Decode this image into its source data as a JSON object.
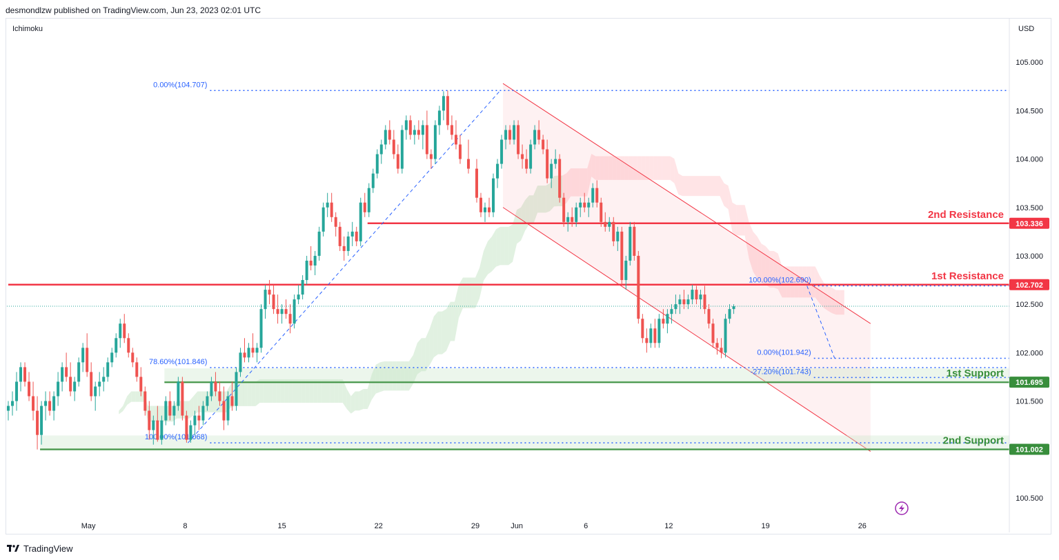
{
  "header": {
    "text": "desmondlzw published on TradingView.com, Jun 23, 2023 02:01 UTC"
  },
  "indicator": "Ichimoku",
  "currency": "USD",
  "footer": {
    "brand": "TradingView"
  },
  "colors": {
    "up": "#26a69a",
    "down": "#ef5350",
    "resistance": "#f23645",
    "support": "#388e3c",
    "fib": "#2962ff",
    "fib_text": "#2962ff",
    "channel": "#f23645",
    "cloud_bull": "#c8e6c9",
    "cloud_bear": "#ffcdd2",
    "flash": "#9c27b0"
  },
  "chart_data": {
    "type": "candlestick",
    "y_range": [
      100.3,
      105.45
    ],
    "y_ticks": [
      "100.500",
      "101.000",
      "101.500",
      "102.000",
      "102.500",
      "103.000",
      "103.500",
      "104.000",
      "104.500",
      "105.000"
    ],
    "x_ticks": [
      {
        "label": "May",
        "day": 1
      },
      {
        "label": "8",
        "day": 8
      },
      {
        "label": "15",
        "day": 15
      },
      {
        "label": "22",
        "day": 22
      },
      {
        "label": "29",
        "day": 29
      },
      {
        "label": "Jun",
        "day": 32
      },
      {
        "label": "6",
        "day": 37
      },
      {
        "label": "12",
        "day": 43
      },
      {
        "label": "19",
        "day": 50
      },
      {
        "label": "26",
        "day": 57
      }
    ],
    "x_range_days": [
      -4.8,
      63.3
    ],
    "last_price": 102.48,
    "levels": [
      {
        "label": "2nd Resistance",
        "value": 103.336,
        "tag": "103.336",
        "kind": "resistance",
        "start_day": 21.2
      },
      {
        "label": "1st Resistance",
        "value": 102.702,
        "tag": "102.702",
        "kind": "resistance",
        "start_day": -4.8
      },
      {
        "label": "1st Support",
        "value": 101.695,
        "tag": "101.695",
        "kind": "support",
        "start_day": 6.5
      },
      {
        "label": "2nd Support",
        "value": 101.002,
        "tag": "101.002",
        "kind": "support",
        "start_day": -2.5
      }
    ],
    "fib_up": {
      "start": {
        "day": 8.2,
        "value": 101.068
      },
      "end": {
        "day": 30.8,
        "value": 104.707
      },
      "levels": [
        {
          "label": "0.00%(104.707)",
          "value": 104.707
        },
        {
          "label": "78.60%(101.846)",
          "value": 101.846
        },
        {
          "label": "100.00%(101.068)",
          "value": 101.068
        }
      ]
    },
    "fib_down": {
      "start": {
        "day": 53.0,
        "value": 102.69
      },
      "end": {
        "day": 55.0,
        "value": 101.942
      },
      "levels": [
        {
          "label": "100.00%(102.690)",
          "value": 102.69
        },
        {
          "label": "0.00%(101.942)",
          "value": 101.942
        },
        {
          "label": "-27.20%(101.743)",
          "value": 101.743
        }
      ]
    },
    "channel": {
      "upper": [
        {
          "day": 31.0,
          "value": 104.78
        },
        {
          "day": 57.6,
          "value": 102.3
        }
      ],
      "lower": [
        {
          "day": 31.0,
          "value": 103.5
        },
        {
          "day": 57.6,
          "value": 100.98
        }
      ]
    },
    "candles": [
      [
        -4.8,
        101.4,
        101.5,
        101.3,
        101.45
      ],
      [
        -4.5,
        101.45,
        101.6,
        101.35,
        101.5
      ],
      [
        -4.2,
        101.5,
        101.8,
        101.4,
        101.7
      ],
      [
        -3.9,
        101.7,
        101.9,
        101.6,
        101.85
      ],
      [
        -3.6,
        101.85,
        101.9,
        101.65,
        101.7
      ],
      [
        -3.3,
        101.7,
        101.8,
        101.5,
        101.55
      ],
      [
        -3.0,
        101.55,
        101.7,
        101.3,
        101.4
      ],
      [
        -2.7,
        101.4,
        101.55,
        101.0,
        101.15
      ],
      [
        -2.4,
        101.15,
        101.5,
        101.05,
        101.45
      ],
      [
        -2.1,
        101.45,
        101.6,
        101.3,
        101.5
      ],
      [
        -1.8,
        101.5,
        101.6,
        101.35,
        101.4
      ],
      [
        -1.5,
        101.4,
        101.6,
        101.3,
        101.55
      ],
      [
        -1.2,
        101.55,
        101.8,
        101.45,
        101.7
      ],
      [
        -0.9,
        101.7,
        101.9,
        101.6,
        101.85
      ],
      [
        -0.6,
        101.85,
        102.0,
        101.7,
        101.75
      ],
      [
        -0.3,
        101.75,
        101.9,
        101.55,
        101.6
      ],
      [
        0.0,
        101.6,
        101.75,
        101.5,
        101.7
      ],
      [
        0.3,
        101.7,
        101.95,
        101.65,
        101.9
      ],
      [
        0.6,
        101.9,
        102.1,
        101.8,
        102.05
      ],
      [
        0.9,
        102.05,
        102.2,
        101.75,
        101.8
      ],
      [
        1.2,
        101.8,
        101.9,
        101.5,
        101.55
      ],
      [
        1.5,
        101.55,
        101.7,
        101.4,
        101.65
      ],
      [
        1.8,
        101.65,
        101.8,
        101.55,
        101.7
      ],
      [
        2.1,
        101.7,
        101.85,
        101.6,
        101.75
      ],
      [
        2.4,
        101.75,
        101.95,
        101.7,
        101.9
      ],
      [
        2.7,
        101.9,
        102.05,
        101.85,
        102.0
      ],
      [
        3.0,
        102.0,
        102.2,
        101.95,
        102.15
      ],
      [
        3.3,
        102.15,
        102.35,
        102.05,
        102.3
      ],
      [
        3.6,
        102.3,
        102.4,
        102.1,
        102.15
      ],
      [
        3.9,
        102.15,
        102.2,
        101.95,
        102.0
      ],
      [
        4.2,
        102.0,
        102.05,
        101.85,
        101.9
      ],
      [
        4.5,
        101.9,
        101.95,
        101.7,
        101.75
      ],
      [
        4.8,
        101.75,
        101.85,
        101.55,
        101.6
      ],
      [
        5.1,
        101.6,
        101.65,
        101.35,
        101.4
      ],
      [
        5.4,
        101.4,
        101.5,
        101.1,
        101.2
      ],
      [
        5.7,
        101.2,
        101.35,
        101.05,
        101.3
      ],
      [
        6.0,
        101.3,
        101.45,
        101.08,
        101.1
      ],
      [
        6.3,
        101.1,
        101.35,
        101.05,
        101.3
      ],
      [
        6.6,
        101.3,
        101.55,
        101.25,
        101.5
      ],
      [
        6.9,
        101.5,
        101.6,
        101.3,
        101.35
      ],
      [
        7.2,
        101.35,
        101.5,
        101.25,
        101.45
      ],
      [
        7.5,
        101.45,
        101.75,
        101.4,
        101.7
      ],
      [
        7.8,
        101.7,
        101.75,
        101.3,
        101.35
      ],
      [
        8.1,
        101.35,
        101.4,
        101.07,
        101.1
      ],
      [
        8.4,
        101.1,
        101.3,
        101.07,
        101.25
      ],
      [
        8.7,
        101.25,
        101.4,
        101.15,
        101.35
      ],
      [
        9.0,
        101.35,
        101.45,
        101.2,
        101.3
      ],
      [
        9.3,
        101.3,
        101.5,
        101.25,
        101.45
      ],
      [
        9.6,
        101.45,
        101.6,
        101.4,
        101.55
      ],
      [
        9.9,
        101.55,
        101.75,
        101.5,
        101.7
      ],
      [
        10.2,
        101.7,
        101.8,
        101.55,
        101.6
      ],
      [
        10.5,
        101.6,
        101.7,
        101.45,
        101.5
      ],
      [
        10.8,
        101.5,
        101.65,
        101.2,
        101.3
      ],
      [
        11.1,
        101.3,
        101.6,
        101.25,
        101.55
      ],
      [
        11.4,
        101.55,
        101.7,
        101.4,
        101.45
      ],
      [
        11.7,
        101.45,
        101.85,
        101.4,
        101.8
      ],
      [
        12.0,
        101.8,
        102.05,
        101.75,
        102.0
      ],
      [
        12.3,
        102.0,
        102.15,
        101.9,
        101.95
      ],
      [
        12.6,
        101.95,
        102.1,
        101.9,
        102.05
      ],
      [
        12.9,
        102.05,
        102.2,
        101.95,
        102.0
      ],
      [
        13.2,
        102.0,
        102.1,
        101.9,
        102.05
      ],
      [
        13.5,
        102.05,
        102.5,
        102.0,
        102.45
      ],
      [
        13.8,
        102.45,
        102.7,
        102.35,
        102.65
      ],
      [
        14.1,
        102.65,
        102.75,
        102.5,
        102.6
      ],
      [
        14.4,
        102.6,
        102.7,
        102.4,
        102.45
      ],
      [
        14.7,
        102.45,
        102.6,
        102.3,
        102.4
      ],
      [
        15.0,
        102.4,
        102.5,
        102.3,
        102.45
      ],
      [
        15.3,
        102.45,
        102.55,
        102.35,
        102.4
      ],
      [
        15.6,
        102.4,
        102.5,
        102.2,
        102.3
      ],
      [
        15.9,
        102.3,
        102.6,
        102.25,
        102.55
      ],
      [
        16.2,
        102.55,
        102.7,
        102.5,
        102.6
      ],
      [
        16.5,
        102.6,
        102.8,
        102.55,
        102.75
      ],
      [
        16.8,
        102.75,
        103.0,
        102.7,
        102.95
      ],
      [
        17.1,
        102.95,
        103.1,
        102.85,
        102.9
      ],
      [
        17.4,
        102.9,
        103.05,
        102.8,
        103.0
      ],
      [
        17.7,
        103.0,
        103.3,
        102.95,
        103.25
      ],
      [
        18.0,
        103.25,
        103.55,
        103.2,
        103.5
      ],
      [
        18.3,
        103.5,
        103.65,
        103.4,
        103.55
      ],
      [
        18.6,
        103.55,
        103.65,
        103.35,
        103.4
      ],
      [
        18.9,
        103.4,
        103.45,
        103.2,
        103.3
      ],
      [
        19.2,
        103.3,
        103.35,
        103.05,
        103.1
      ],
      [
        19.5,
        103.1,
        103.2,
        102.95,
        103.05
      ],
      [
        19.8,
        103.05,
        103.25,
        103.0,
        103.2
      ],
      [
        20.1,
        103.2,
        103.35,
        103.1,
        103.25
      ],
      [
        20.4,
        103.25,
        103.3,
        103.1,
        103.15
      ],
      [
        20.7,
        103.15,
        103.6,
        103.1,
        103.55
      ],
      [
        21.0,
        103.55,
        103.65,
        103.4,
        103.45
      ],
      [
        21.3,
        103.45,
        103.75,
        103.4,
        103.7
      ],
      [
        21.6,
        103.7,
        103.9,
        103.65,
        103.85
      ],
      [
        21.9,
        103.85,
        104.1,
        103.8,
        104.05
      ],
      [
        22.2,
        104.05,
        104.2,
        103.95,
        104.15
      ],
      [
        22.5,
        104.15,
        104.35,
        104.1,
        104.3
      ],
      [
        22.8,
        104.3,
        104.4,
        104.15,
        104.2
      ],
      [
        23.1,
        104.2,
        104.3,
        104.0,
        104.05
      ],
      [
        23.4,
        104.05,
        104.15,
        103.85,
        103.9
      ],
      [
        23.7,
        103.9,
        104.35,
        103.85,
        104.3
      ],
      [
        24.0,
        104.3,
        104.45,
        104.2,
        104.4
      ],
      [
        24.3,
        104.4,
        104.45,
        104.2,
        104.25
      ],
      [
        24.6,
        104.25,
        104.35,
        104.15,
        104.3
      ],
      [
        24.9,
        104.3,
        104.4,
        104.2,
        104.25
      ],
      [
        25.2,
        104.25,
        104.4,
        104.1,
        104.35
      ],
      [
        25.5,
        104.35,
        104.5,
        104.0,
        104.05
      ],
      [
        25.8,
        104.05,
        104.1,
        103.9,
        104.0
      ],
      [
        26.1,
        104.0,
        104.4,
        103.95,
        104.35
      ],
      [
        26.4,
        104.35,
        104.55,
        104.25,
        104.5
      ],
      [
        26.7,
        104.5,
        104.7,
        104.4,
        104.65
      ],
      [
        27.0,
        104.65,
        104.707,
        104.3,
        104.35
      ],
      [
        27.3,
        104.35,
        104.45,
        104.2,
        104.25
      ],
      [
        27.6,
        104.25,
        104.4,
        104.1,
        104.15
      ],
      [
        27.9,
        104.15,
        104.25,
        103.95,
        104.0
      ],
      [
        28.5,
        104.0,
        104.2,
        103.85,
        103.9
      ],
      [
        29.1,
        103.9,
        104.0,
        103.55,
        103.6
      ],
      [
        29.4,
        103.6,
        103.65,
        103.4,
        103.45
      ],
      [
        29.7,
        103.45,
        103.55,
        103.35,
        103.5
      ],
      [
        30.0,
        103.5,
        103.6,
        103.4,
        103.45
      ],
      [
        30.3,
        103.45,
        103.85,
        103.4,
        103.8
      ],
      [
        30.6,
        103.8,
        104.0,
        103.7,
        103.95
      ],
      [
        30.9,
        103.95,
        104.25,
        103.9,
        104.2
      ],
      [
        31.2,
        104.2,
        104.35,
        104.1,
        104.3
      ],
      [
        31.5,
        104.3,
        104.35,
        104.15,
        104.2
      ],
      [
        31.8,
        104.2,
        104.4,
        104.15,
        104.35
      ],
      [
        32.1,
        104.35,
        104.4,
        104.0,
        104.05
      ],
      [
        32.4,
        104.05,
        104.15,
        103.9,
        104.0
      ],
      [
        32.7,
        104.0,
        104.1,
        103.85,
        103.9
      ],
      [
        33.0,
        103.9,
        104.2,
        103.85,
        104.15
      ],
      [
        33.3,
        104.15,
        104.35,
        104.1,
        104.3
      ],
      [
        33.6,
        104.3,
        104.4,
        104.15,
        104.2
      ],
      [
        33.9,
        104.2,
        104.25,
        104.05,
        104.1
      ],
      [
        34.2,
        104.1,
        104.2,
        103.75,
        103.8
      ],
      [
        34.5,
        103.8,
        104.0,
        103.7,
        103.95
      ],
      [
        34.8,
        103.95,
        104.1,
        103.9,
        104.0
      ],
      [
        35.1,
        104.0,
        104.05,
        103.55,
        103.6
      ],
      [
        35.4,
        103.6,
        103.65,
        103.3,
        103.35
      ],
      [
        35.7,
        103.35,
        103.45,
        103.25,
        103.4
      ],
      [
        36.0,
        103.4,
        103.5,
        103.3,
        103.35
      ],
      [
        36.3,
        103.35,
        103.55,
        103.3,
        103.5
      ],
      [
        36.6,
        103.5,
        103.6,
        103.4,
        103.55
      ],
      [
        36.9,
        103.55,
        103.65,
        103.45,
        103.5
      ],
      [
        37.2,
        103.5,
        103.6,
        103.4,
        103.55
      ],
      [
        37.5,
        103.55,
        103.75,
        103.5,
        103.7
      ],
      [
        37.8,
        103.7,
        103.78,
        103.5,
        103.55
      ],
      [
        38.1,
        103.55,
        103.6,
        103.3,
        103.35
      ],
      [
        38.4,
        103.35,
        103.45,
        103.25,
        103.3
      ],
      [
        38.7,
        103.3,
        103.4,
        103.25,
        103.35
      ],
      [
        39.0,
        103.35,
        103.4,
        103.1,
        103.15
      ],
      [
        39.3,
        103.15,
        103.3,
        103.05,
        103.25
      ],
      [
        39.6,
        103.25,
        103.3,
        102.7,
        102.75
      ],
      [
        39.9,
        102.75,
        103.0,
        102.65,
        102.95
      ],
      [
        40.2,
        102.95,
        103.35,
        102.9,
        103.3
      ],
      [
        40.5,
        103.3,
        103.35,
        102.95,
        103.0
      ],
      [
        40.8,
        103.0,
        103.05,
        102.3,
        102.35
      ],
      [
        41.1,
        102.35,
        102.4,
        102.1,
        102.15
      ],
      [
        41.4,
        102.15,
        102.25,
        102.0,
        102.1
      ],
      [
        41.7,
        102.1,
        102.3,
        102.05,
        102.25
      ],
      [
        42.0,
        102.25,
        102.35,
        102.05,
        102.1
      ],
      [
        42.3,
        102.1,
        102.4,
        102.05,
        102.35
      ],
      [
        42.6,
        102.35,
        102.45,
        102.25,
        102.3
      ],
      [
        42.9,
        102.3,
        102.45,
        102.2,
        102.4
      ],
      [
        43.2,
        102.4,
        102.5,
        102.3,
        102.45
      ],
      [
        43.5,
        102.45,
        102.6,
        102.4,
        102.5
      ],
      [
        43.8,
        102.5,
        102.6,
        102.4,
        102.55
      ],
      [
        44.1,
        102.55,
        102.65,
        102.45,
        102.5
      ],
      [
        44.4,
        102.5,
        102.6,
        102.45,
        102.55
      ],
      [
        44.7,
        102.55,
        102.7,
        102.5,
        102.65
      ],
      [
        45.0,
        102.65,
        102.69,
        102.5,
        102.55
      ],
      [
        45.3,
        102.55,
        102.65,
        102.45,
        102.6
      ],
      [
        45.6,
        102.6,
        102.69,
        102.4,
        102.45
      ],
      [
        45.9,
        102.45,
        102.5,
        102.25,
        102.3
      ],
      [
        46.2,
        102.3,
        102.35,
        102.05,
        102.1
      ],
      [
        46.5,
        102.1,
        102.15,
        101.98,
        102.05
      ],
      [
        46.8,
        102.05,
        102.15,
        101.942,
        102.0
      ],
      [
        47.1,
        102.0,
        102.4,
        101.95,
        102.35
      ],
      [
        47.4,
        102.35,
        102.5,
        102.3,
        102.45
      ],
      [
        47.7,
        102.45,
        102.5,
        102.4,
        102.48
      ]
    ]
  }
}
